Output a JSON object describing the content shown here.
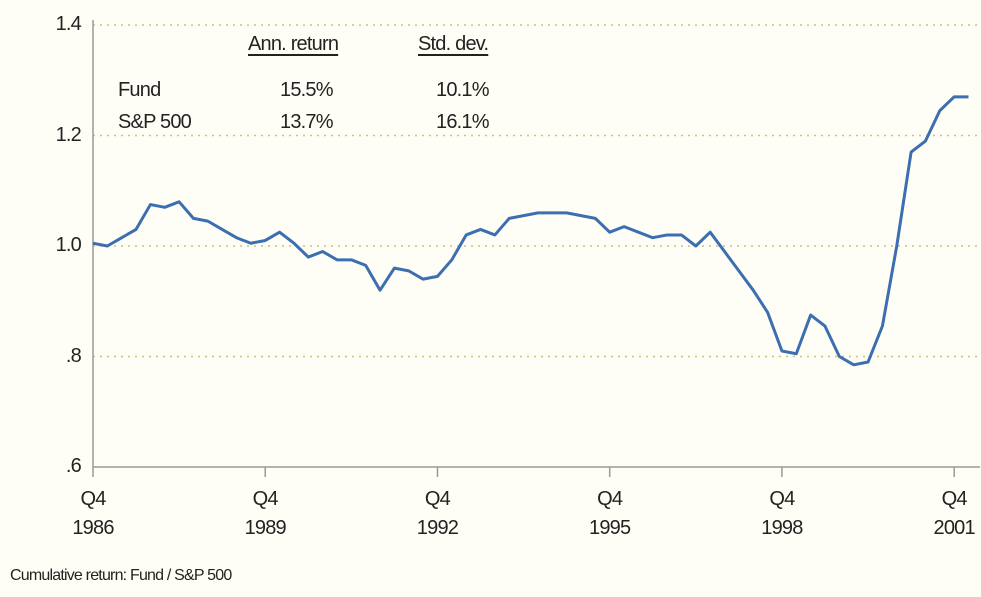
{
  "chart_data": {
    "type": "line",
    "footnote": "Cumulative return: Fund / S&P 500",
    "table": {
      "columns": [
        "Ann. return",
        "Std. dev."
      ],
      "rows": [
        [
          "Fund",
          "15.5%",
          "10.1%"
        ],
        [
          "S&P 500",
          "13.7%",
          "16.1%"
        ]
      ]
    },
    "x": [
      1986.75,
      1987,
      1987.25,
      1987.5,
      1987.75,
      1988,
      1988.25,
      1988.5,
      1988.75,
      1989,
      1989.25,
      1989.5,
      1989.75,
      1990,
      1990.25,
      1990.5,
      1990.75,
      1991,
      1991.25,
      1991.5,
      1991.75,
      1992,
      1992.25,
      1992.5,
      1992.75,
      1993,
      1993.25,
      1993.5,
      1993.75,
      1994,
      1994.25,
      1994.5,
      1994.75,
      1995,
      1995.25,
      1995.5,
      1995.75,
      1996,
      1996.25,
      1996.5,
      1996.75,
      1997,
      1997.25,
      1997.5,
      1997.75,
      1998,
      1998.25,
      1998.5,
      1998.75,
      1999,
      1999.25,
      1999.5,
      1999.75,
      2000,
      2000.25,
      2000.5,
      2000.75,
      2001,
      2001.25,
      2001.5,
      2001.75,
      2002
    ],
    "series": [
      {
        "name": "Fund / S&P 500",
        "color": "#3c6fb0",
        "values": [
          1.005,
          1.0,
          1.015,
          1.03,
          1.075,
          1.07,
          1.08,
          1.05,
          1.045,
          1.03,
          1.015,
          1.005,
          1.01,
          1.025,
          1.005,
          0.98,
          0.99,
          0.975,
          0.975,
          0.965,
          0.92,
          0.96,
          0.955,
          0.94,
          0.945,
          0.975,
          1.02,
          1.03,
          1.02,
          1.05,
          1.055,
          1.06,
          1.06,
          1.06,
          1.055,
          1.05,
          1.025,
          1.035,
          1.025,
          1.015,
          1.02,
          1.02,
          1.0,
          1.025,
          0.99,
          0.955,
          0.92,
          0.88,
          0.81,
          0.805,
          0.875,
          0.855,
          0.8,
          0.785,
          0.79,
          0.855,
          1.0,
          1.17,
          1.19,
          1.245,
          1.27,
          1.27
        ]
      }
    ],
    "xlim": [
      1986.75,
      2002.2
    ],
    "xticks": [
      {
        "value": 1986.75,
        "label": "Q4\n1986"
      },
      {
        "value": 1989.75,
        "label": "Q4\n1989"
      },
      {
        "value": 1992.75,
        "label": "Q4\n1992"
      },
      {
        "value": 1995.75,
        "label": "Q4\n1995"
      },
      {
        "value": 1998.75,
        "label": "Q4\n1998"
      },
      {
        "value": 2001.75,
        "label": "Q4\n2001"
      }
    ],
    "ylim": [
      0.6,
      1.4
    ],
    "yticks": [
      {
        "value": 0.6,
        "label": ".6"
      },
      {
        "value": 0.8,
        "label": ".8"
      },
      {
        "value": 1.0,
        "label": "1.0"
      },
      1.2,
      1.4
    ],
    "grid": true
  }
}
